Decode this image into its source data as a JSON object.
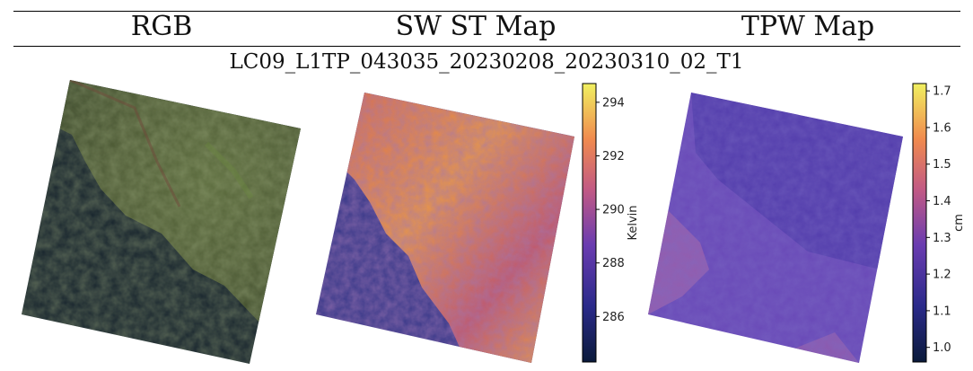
{
  "headers": {
    "rgb": "RGB",
    "swst": "SW ST Map",
    "tpw": "TPW Map"
  },
  "scene_id": "LC09_L1TP_043035_20230208_20230310_02_T1",
  "colorbars": {
    "swst": {
      "label": "Kelvin",
      "range": [
        284.3,
        294.7
      ],
      "ticks": [
        {
          "value": 286,
          "label": "286"
        },
        {
          "value": 288,
          "label": "288"
        },
        {
          "value": 290,
          "label": "290"
        },
        {
          "value": 292,
          "label": "292"
        },
        {
          "value": 294,
          "label": "294"
        }
      ]
    },
    "tpw": {
      "label": "cm",
      "range": [
        0.96,
        1.72
      ],
      "ticks": [
        {
          "value": 1.0,
          "label": "1.0"
        },
        {
          "value": 1.1,
          "label": "1.1"
        },
        {
          "value": 1.2,
          "label": "1.2"
        },
        {
          "value": 1.3,
          "label": "1.3"
        },
        {
          "value": 1.4,
          "label": "1.4"
        },
        {
          "value": 1.5,
          "label": "1.5"
        },
        {
          "value": 1.6,
          "label": "1.6"
        },
        {
          "value": 1.7,
          "label": "1.7"
        }
      ]
    }
  },
  "colors": {
    "rgb_land": "#4d5a35",
    "rgb_ocean": "#15222c",
    "swst_land": "#e08a4e",
    "swst_ocean": "#3a3a8a",
    "tpw_land": "#5b46b0",
    "tpw_ocean": "#7a52b8"
  }
}
